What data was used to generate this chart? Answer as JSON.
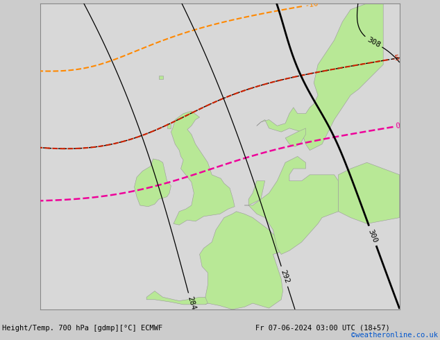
{
  "title_left": "Height/Temp. 700 hPa [gdmp][°C] ECMWF",
  "title_right": "Fr 07-06-2024 03:00 UTC (18+57)",
  "watermark": "©weatheronline.co.uk",
  "bg_color": "#d8d8d8",
  "land_color": "#b8e896",
  "border_color": "#999999",
  "sea_color": "#d8d8d8",
  "figsize": [
    6.34,
    4.9
  ],
  "dpi": 100,
  "contour_black_color": "#000000",
  "contour_black_lw_thick": 2.0,
  "contour_black_lw_thin": 0.9,
  "contour_orange_color": "#ff8800",
  "contour_orange_lw": 1.5,
  "contour_red_color": "#cc2200",
  "contour_red_lw": 1.5,
  "contour_magenta_color": "#ee0099",
  "contour_magenta_lw": 1.8,
  "contour_black_dashed_color": "#000000",
  "contour_black_dashed_lw": 1.2
}
